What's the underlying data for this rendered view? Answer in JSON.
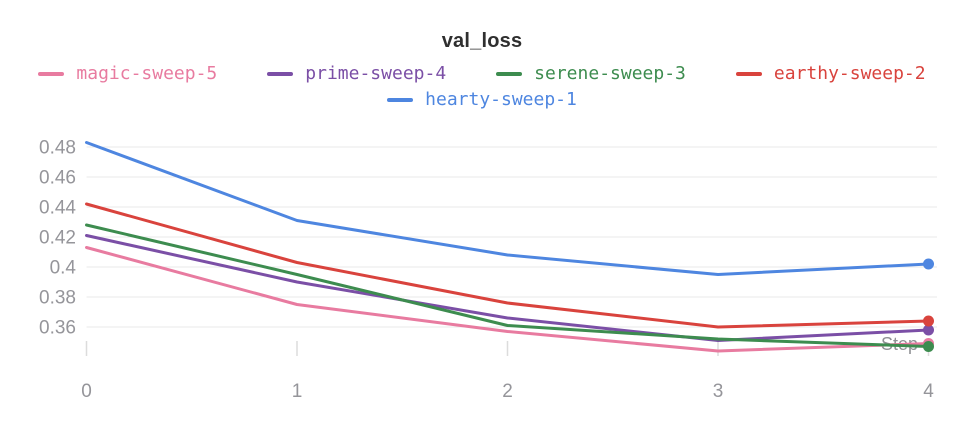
{
  "title": "val_loss",
  "colors": {
    "grid": "#e9e9e9",
    "tick": "#dcdcdc",
    "axis_text": "#95959a",
    "title_text": "#2f2f2f",
    "step_label": "#8f9094"
  },
  "legend": {
    "rows": [
      [
        "magic-sweep-5",
        "prime-sweep-4",
        "serene-sweep-3",
        "earthy-sweep-2"
      ],
      [
        "hearty-sweep-1"
      ]
    ]
  },
  "chart_data": {
    "type": "line",
    "title": "val_loss",
    "xlabel": "Step",
    "ylabel": "",
    "x": [
      0,
      1,
      2,
      3,
      4
    ],
    "xtick_labels": [
      "0",
      "1",
      "2",
      "3",
      "4"
    ],
    "yticks": [
      0.48,
      0.46,
      0.44,
      0.42,
      0.4,
      0.38,
      0.36
    ],
    "ytick_labels": [
      "0.48",
      "0.46",
      "0.44",
      "0.42",
      "0.4",
      "0.38",
      "0.36"
    ],
    "ylim": [
      0.34,
      0.49
    ],
    "grid": "horizontal",
    "legend_position": "top",
    "end_markers": true,
    "series": [
      {
        "name": "magic-sweep-5",
        "color": "#e87ba0",
        "values": [
          0.413,
          0.375,
          0.357,
          0.344,
          0.349
        ]
      },
      {
        "name": "prime-sweep-4",
        "color": "#7b4fa6",
        "values": [
          0.421,
          0.39,
          0.366,
          0.351,
          0.358
        ]
      },
      {
        "name": "serene-sweep-3",
        "color": "#3d8c4f",
        "values": [
          0.428,
          0.395,
          0.361,
          0.352,
          0.347
        ]
      },
      {
        "name": "earthy-sweep-2",
        "color": "#d9433d",
        "values": [
          0.442,
          0.403,
          0.376,
          0.36,
          0.364
        ]
      },
      {
        "name": "hearty-sweep-1",
        "color": "#4e86e0",
        "values": [
          0.483,
          0.431,
          0.408,
          0.395,
          0.402
        ]
      }
    ]
  }
}
